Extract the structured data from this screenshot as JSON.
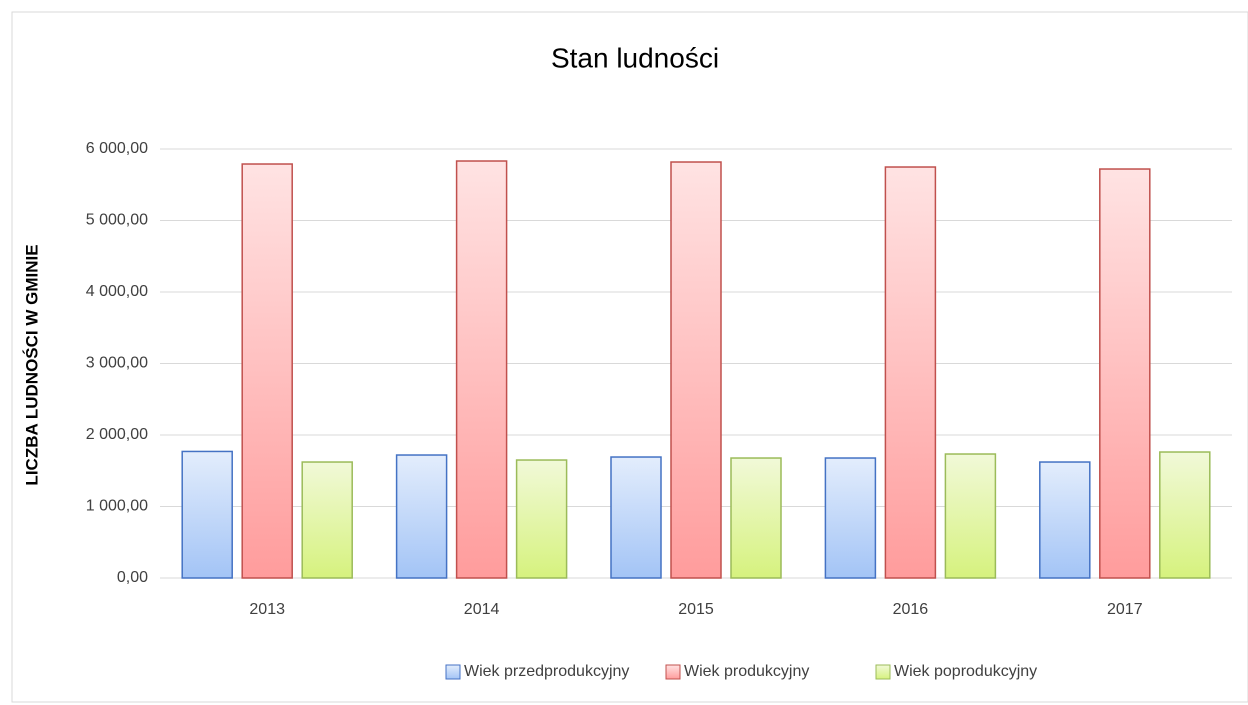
{
  "chart_data": {
    "type": "bar",
    "title": "Stan ludności",
    "y_label": "LICZBA LUDNOŚCI W GMINIE",
    "categories": [
      "2013",
      "2014",
      "2015",
      "2016",
      "2017"
    ],
    "series": [
      {
        "name": "Wiek przedprodukcyjny",
        "color": "#4472c4",
        "values": [
          1770,
          1720,
          1692,
          1678,
          1622
        ]
      },
      {
        "name": "Wiek produkcyjny",
        "color": "#c0504d",
        "values": [
          5790,
          5832,
          5818,
          5748,
          5720
        ]
      },
      {
        "name": "Wiek poprodukcyjny",
        "color": "#9bbb59",
        "values": [
          1622,
          1650,
          1678,
          1734,
          1762
        ]
      }
    ],
    "ylim": [
      0,
      6000
    ],
    "yticks": [
      {
        "value": 0,
        "label": "0,00"
      },
      {
        "value": 1000,
        "label": "1 000,00"
      },
      {
        "value": 2000,
        "label": "2 000,00"
      },
      {
        "value": 3000,
        "label": "3 000,00"
      },
      {
        "value": 4000,
        "label": "4 000,00"
      },
      {
        "value": 5000,
        "label": "5 000,00"
      },
      {
        "value": 6000,
        "label": "6 000,00"
      }
    ],
    "grid": true,
    "legend": "bottom"
  }
}
